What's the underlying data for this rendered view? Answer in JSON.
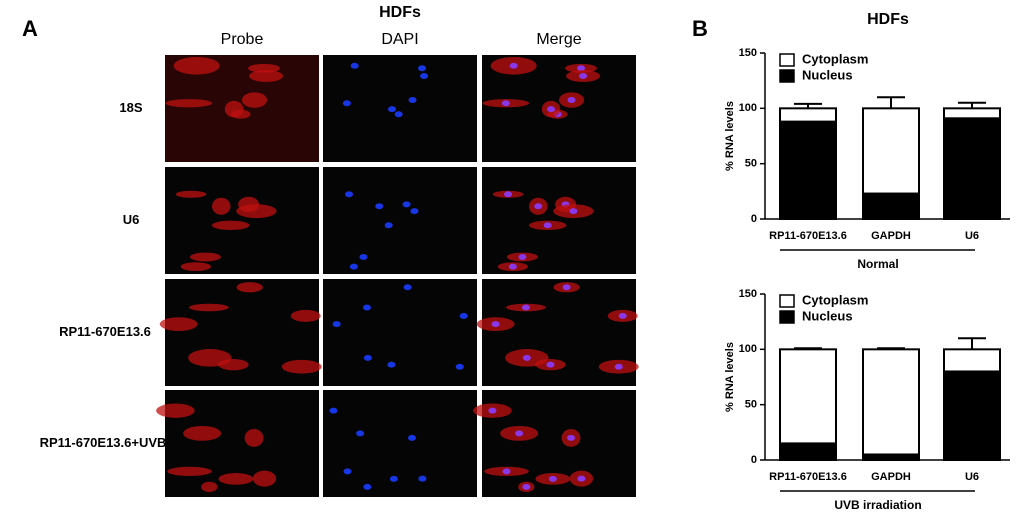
{
  "panel_a": {
    "label": "A",
    "title": "HDFs",
    "columns": [
      "Probe",
      "DAPI",
      "Merge"
    ],
    "rows": [
      "18S",
      "U6",
      "RP11-670E13.6",
      "RP11-670E13.6+UVB"
    ]
  },
  "panel_b": {
    "label": "B"
  },
  "chart_data": [
    {
      "type": "stacked-bar",
      "title": "HDFs",
      "y_label": "% RNA levels",
      "group_label": "Normal",
      "categories": [
        "RP11-670E13.6",
        "GAPDH",
        "U6"
      ],
      "series": [
        {
          "name": "Nucleus",
          "color": "#000000",
          "values": [
            88,
            23,
            91
          ],
          "errors": [
            4,
            9,
            4
          ]
        },
        {
          "name": "Cytoplasm",
          "color": "#ffffff",
          "values": [
            12,
            77,
            9
          ],
          "errors": [
            4,
            10,
            5
          ]
        }
      ],
      "ylim": [
        0,
        150
      ],
      "yticks": [
        0,
        50,
        100,
        150
      ],
      "legend": "top-left"
    },
    {
      "type": "stacked-bar",
      "y_label": "% RNA levels",
      "group_label": "UVB irradiation",
      "categories": [
        "RP11-670E13.6",
        "GAPDH",
        "U6"
      ],
      "series": [
        {
          "name": "Nucleus",
          "color": "#000000",
          "values": [
            15,
            5,
            80
          ],
          "errors": [
            1,
            1,
            10
          ]
        },
        {
          "name": "Cytoplasm",
          "color": "#ffffff",
          "values": [
            85,
            95,
            20
          ],
          "errors": [
            1,
            1,
            10
          ]
        }
      ],
      "ylim": [
        0,
        150
      ],
      "yticks": [
        0,
        50,
        100,
        150
      ],
      "legend": "top-left"
    }
  ]
}
